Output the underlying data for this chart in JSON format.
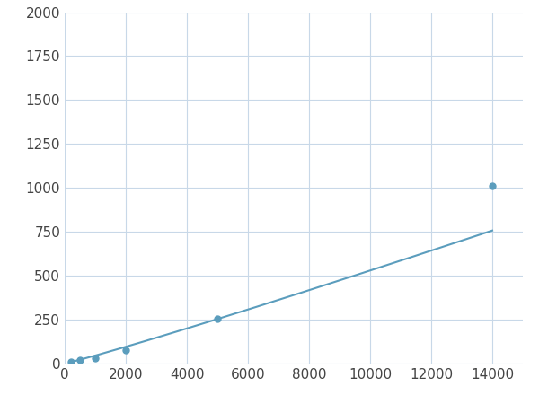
{
  "x_data": [
    200,
    500,
    1000,
    2000,
    5000,
    14000
  ],
  "y_data": [
    12,
    22,
    30,
    75,
    255,
    1010
  ],
  "line_color": "#5b9dbd",
  "marker_color": "#5b9dbd",
  "marker_size": 5,
  "xlim": [
    0,
    15000
  ],
  "ylim": [
    0,
    2000
  ],
  "xticks": [
    0,
    2000,
    4000,
    6000,
    8000,
    10000,
    12000,
    14000
  ],
  "yticks": [
    0,
    250,
    500,
    750,
    1000,
    1250,
    1500,
    1750,
    2000
  ],
  "grid_color": "#c8d8e8",
  "plot_bg": "#ffffff",
  "figure_bg": "#ffffff",
  "tick_labelsize": 11,
  "tick_color": "#444444"
}
